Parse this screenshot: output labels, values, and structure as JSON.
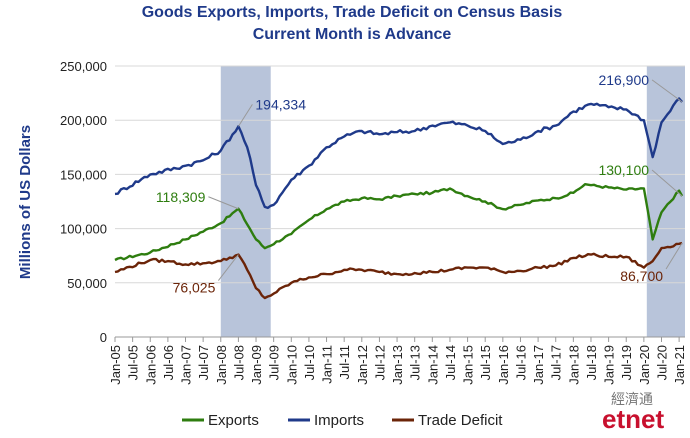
{
  "chart_data": {
    "type": "line",
    "title": "Goods Exports, Imports, Trade Deficit on Census Basis",
    "subtitle": "Current Month is Advance",
    "ylabel": "Millions of US Dollars",
    "xlabel": "",
    "ylim": [
      0,
      250000
    ],
    "yticks": [
      "0",
      "50,000",
      "100,000",
      "150,000",
      "200,000",
      "250,000"
    ],
    "xticks": [
      "Jan-05",
      "Jul-05",
      "Jan-06",
      "Jul-06",
      "Jan-07",
      "Jul-07",
      "Jan-08",
      "Jul-08",
      "Jan-09",
      "Jul-09",
      "Jan-10",
      "Jul-10",
      "Jan-11",
      "Jul-11",
      "Jan-12",
      "Jul-12",
      "Jan-13",
      "Jul-13",
      "Jan-14",
      "Jul-14",
      "Jan-15",
      "Jul-15",
      "Jan-16",
      "Jul-16",
      "Jan-17",
      "Jul-17",
      "Jan-18",
      "Jul-18",
      "Jan-19",
      "Jul-19",
      "Jan-20",
      "Jul-20",
      "Jan-21"
    ],
    "grid": true,
    "legend_position": "bottom",
    "shaded_periods": [
      [
        "2008-01",
        "2009-06"
      ],
      [
        "2020-02",
        "2021-03"
      ]
    ],
    "series": [
      {
        "name": "Exports",
        "color": "#2e7d0f",
        "points": [
          [
            "2005-01",
            71000
          ],
          [
            "2006-01",
            78000
          ],
          [
            "2007-01",
            90000
          ],
          [
            "2008-01",
            105000
          ],
          [
            "2008-07",
            118309
          ],
          [
            "2009-01",
            90000
          ],
          [
            "2009-04",
            82000
          ],
          [
            "2010-01",
            95000
          ],
          [
            "2010-07",
            108000
          ],
          [
            "2011-01",
            118000
          ],
          [
            "2011-07",
            125000
          ],
          [
            "2012-01",
            128000
          ],
          [
            "2012-07",
            127000
          ],
          [
            "2013-01",
            130000
          ],
          [
            "2013-07",
            132000
          ],
          [
            "2014-01",
            133000
          ],
          [
            "2014-07",
            137000
          ],
          [
            "2015-01",
            130000
          ],
          [
            "2015-07",
            125000
          ],
          [
            "2016-01",
            118000
          ],
          [
            "2016-07",
            122000
          ],
          [
            "2017-01",
            126000
          ],
          [
            "2017-07",
            128000
          ],
          [
            "2018-01",
            133000
          ],
          [
            "2018-05",
            141000
          ],
          [
            "2018-07",
            140000
          ],
          [
            "2019-01",
            138000
          ],
          [
            "2019-07",
            136000
          ],
          [
            "2020-01",
            137000
          ],
          [
            "2020-04",
            90000
          ],
          [
            "2020-07",
            115000
          ],
          [
            "2021-01",
            135000
          ],
          [
            "2021-02",
            130100
          ]
        ]
      },
      {
        "name": "Imports",
        "color": "#1f3a8a",
        "points": [
          [
            "2005-01",
            132000
          ],
          [
            "2006-01",
            150000
          ],
          [
            "2007-01",
            158000
          ],
          [
            "2007-07",
            163000
          ],
          [
            "2008-01",
            172000
          ],
          [
            "2008-07",
            194334
          ],
          [
            "2008-10",
            175000
          ],
          [
            "2009-01",
            140000
          ],
          [
            "2009-04",
            120000
          ],
          [
            "2009-07",
            122000
          ],
          [
            "2010-01",
            145000
          ],
          [
            "2010-07",
            158000
          ],
          [
            "2011-01",
            175000
          ],
          [
            "2011-07",
            185000
          ],
          [
            "2012-01",
            190000
          ],
          [
            "2012-07",
            187000
          ],
          [
            "2013-01",
            189000
          ],
          [
            "2013-07",
            190000
          ],
          [
            "2014-01",
            195000
          ],
          [
            "2014-07",
            198000
          ],
          [
            "2015-01",
            195000
          ],
          [
            "2015-07",
            190000
          ],
          [
            "2016-01",
            178000
          ],
          [
            "2016-07",
            182000
          ],
          [
            "2017-01",
            190000
          ],
          [
            "2017-07",
            195000
          ],
          [
            "2018-01",
            208000
          ],
          [
            "2018-07",
            215000
          ],
          [
            "2019-01",
            212000
          ],
          [
            "2019-07",
            210000
          ],
          [
            "2020-01",
            200000
          ],
          [
            "2020-04",
            166000
          ],
          [
            "2020-07",
            198000
          ],
          [
            "2021-01",
            220000
          ],
          [
            "2021-02",
            216900
          ]
        ]
      },
      {
        "name": "Trade Deficit",
        "color": "#6b2408",
        "points": [
          [
            "2005-01",
            60000
          ],
          [
            "2006-01",
            71000
          ],
          [
            "2006-07",
            70000
          ],
          [
            "2007-01",
            67000
          ],
          [
            "2007-07",
            68000
          ],
          [
            "2008-01",
            70000
          ],
          [
            "2008-07",
            76025
          ],
          [
            "2008-10",
            62000
          ],
          [
            "2009-01",
            45000
          ],
          [
            "2009-04",
            36000
          ],
          [
            "2009-07",
            40000
          ],
          [
            "2010-01",
            50000
          ],
          [
            "2010-07",
            55000
          ],
          [
            "2011-01",
            58000
          ],
          [
            "2011-07",
            62000
          ],
          [
            "2012-01",
            62000
          ],
          [
            "2012-07",
            60000
          ],
          [
            "2013-01",
            58000
          ],
          [
            "2013-07",
            59000
          ],
          [
            "2014-01",
            60000
          ],
          [
            "2014-07",
            62000
          ],
          [
            "2015-01",
            64000
          ],
          [
            "2015-07",
            64000
          ],
          [
            "2016-01",
            60000
          ],
          [
            "2016-07",
            61000
          ],
          [
            "2017-01",
            64000
          ],
          [
            "2017-07",
            66000
          ],
          [
            "2018-01",
            73000
          ],
          [
            "2018-07",
            76000
          ],
          [
            "2019-01",
            74000
          ],
          [
            "2019-07",
            74000
          ],
          [
            "2020-01",
            64000
          ],
          [
            "2020-04",
            70000
          ],
          [
            "2020-07",
            82000
          ],
          [
            "2021-01",
            86000
          ],
          [
            "2021-02",
            86700
          ]
        ]
      }
    ],
    "annotations": [
      {
        "text": "194,334",
        "series": "Imports",
        "at": "2008-07"
      },
      {
        "text": "118,309",
        "series": "Exports",
        "at": "2008-07"
      },
      {
        "text": "76,025",
        "series": "Trade Deficit",
        "at": "2008-07"
      },
      {
        "text": "216,900",
        "series": "Imports",
        "at": "2021-02"
      },
      {
        "text": "130,100",
        "series": "Exports",
        "at": "2021-02"
      },
      {
        "text": "86,700",
        "series": "Trade Deficit",
        "at": "2021-02"
      }
    ]
  },
  "watermark": {
    "text": "etnet",
    "chinese": "經濟通"
  }
}
